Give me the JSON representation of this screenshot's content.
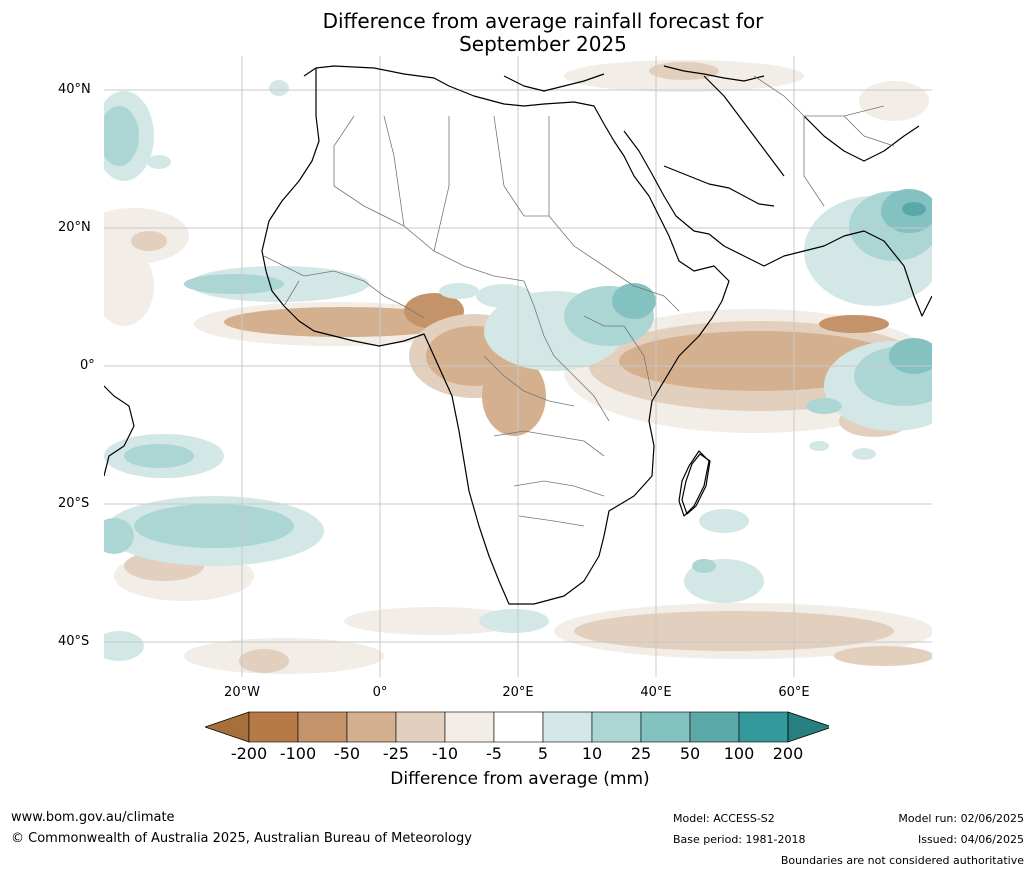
{
  "title_line1": "Difference from average rainfall forecast for",
  "title_line2": "September 2025",
  "lat_labels": [
    "40°N",
    "20°N",
    "0°",
    "20°S",
    "40°S"
  ],
  "lon_labels": [
    "20°W",
    "0°",
    "20°E",
    "40°E",
    "60°E"
  ],
  "legend": {
    "title": "Difference from average (mm)",
    "labels": [
      "-200",
      "-100",
      "-50",
      "-25",
      "-10",
      "-5",
      "5",
      "10",
      "25",
      "50",
      "100",
      "200"
    ],
    "colors": [
      "#a5703b",
      "#b57a45",
      "#c49369",
      "#d5b08f",
      "#e3cfbd",
      "#f2ede6",
      "#ffffff",
      "#d3e8e6",
      "#abd6d4",
      "#84c2c1",
      "#5aa9a8",
      "#34999a",
      "#287f80"
    ]
  },
  "footer": {
    "url": "www.bom.gov.au/climate",
    "copyright": "© Commonwealth of Australia 2025, Australian Bureau of Meteorology",
    "model": "Model: ACCESS-S2",
    "base_period": "Base period: 1981-2018",
    "model_run": "Model run: 02/06/2025",
    "issued": "Issued: 04/06/2025",
    "disclaimer": "Boundaries are not considered authoritative"
  }
}
